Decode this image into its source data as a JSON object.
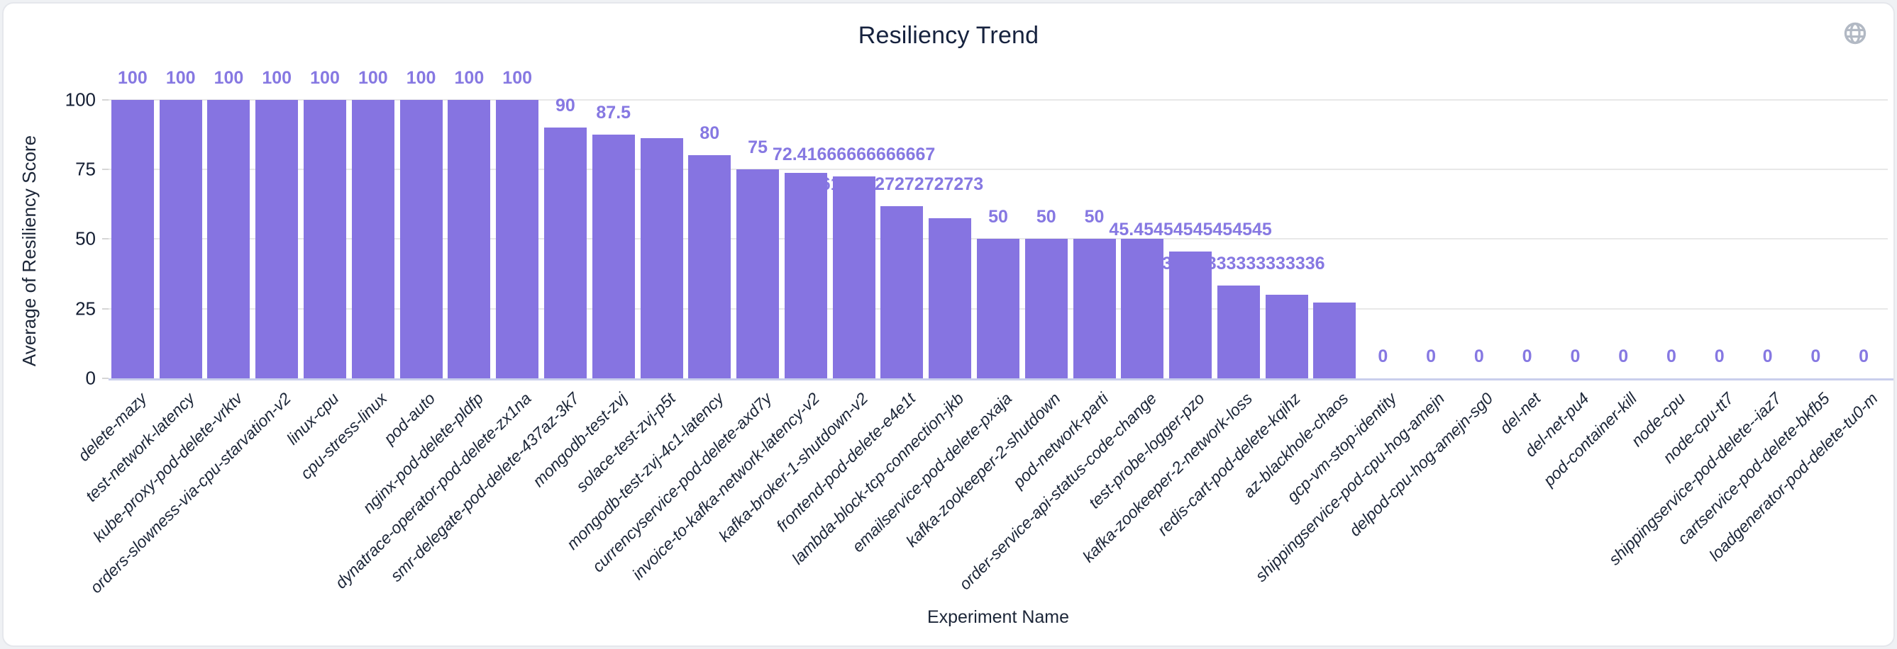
{
  "header": {
    "title": "Resiliency Trend",
    "globe_icon": "globe-icon"
  },
  "chart_data": {
    "type": "bar",
    "title": "Resiliency Trend",
    "xlabel": "Experiment Name",
    "ylabel": "Average of Resiliency Score",
    "ylim": [
      0,
      100
    ],
    "y_ticks": [
      0,
      25,
      50,
      75,
      100
    ],
    "grid": true,
    "legend": "none",
    "bar_color": "#8674e1",
    "value_label_color": "#8678e2",
    "categories": [
      "delete-mazy",
      "test-network-latency",
      "kube-proxy-pod-delete-vrktv",
      "orders-slowness-via-cpu-starvation-v2",
      "linux-cpu",
      "cpu-stress-linux",
      "pod-auto",
      "nginx-pod-delete-pldfp",
      "dynatrace-operator-pod-delete-zx1na",
      "smr-delegate-pod-delete-437az-3k7",
      "mongodb-test-zvj",
      "solace-test-zvj-p5t",
      "mongodb-test-zvj-4c1-latency",
      "currencyservice-pod-delete-axd7y",
      "invoice-to-kafka-network-latency-v2",
      "kafka-broker-1-shutdown-v2",
      "frontend-pod-delete-e4e1t",
      "lambda-block-tcp-connection-jkb",
      "emailservice-pod-delete-pxaja",
      "kafka-zookeeper-2-shutdown",
      "pod-network-parti",
      "order-service-api-status-code-change",
      "test-probe-logger-pzo",
      "kafka-zookeeper-2-network-loss",
      "redis-cart-pod-delete-kqihz",
      "az-blackhole-chaos",
      "gcp-vm-stop-identity",
      "shippingservice-pod-cpu-hog-amejn",
      "delpod-cpu-hog-amejn-sg0",
      "del-net",
      "del-net-pu4",
      "pod-container-kill",
      "node-cpu",
      "node-cpu-tt7",
      "shippingservice-pod-delete--iaz7",
      "cartservice-pod-delete-bkfb5",
      "loadgenerator-pod-delete-tu0-m"
    ],
    "values": [
      100,
      100,
      100,
      100,
      100,
      100,
      100,
      100,
      100,
      90,
      87.5,
      86.25,
      80,
      75,
      73.64,
      72.41666666666667,
      61.72727272727273,
      57.5,
      50,
      50,
      50,
      50,
      45.45454545454545,
      33.333333333333336,
      30,
      27.27,
      0,
      0,
      0,
      0,
      0,
      0,
      0,
      0,
      0,
      0,
      0
    ],
    "bar_labels": [
      "100",
      "100",
      "100",
      "100",
      "100",
      "100",
      "100",
      "100",
      "100",
      "90",
      "87.5",
      null,
      "80",
      "75",
      null,
      "72.41666666666667",
      "61.72727272727273",
      null,
      "50",
      "50",
      "50",
      null,
      "45.45454545454545",
      "33.333333333333336",
      null,
      null,
      "0",
      "0",
      "0",
      "0",
      "0",
      "0",
      "0",
      "0",
      "0",
      "0",
      "0"
    ]
  },
  "colors": {
    "bar": "#8674e1",
    "value_label": "#8678e2",
    "title_text": "#16223e",
    "axis_text": "#1c2638",
    "gridline": "#e8e8e8",
    "axis_line": "#c9cfec",
    "globe_icon": "#b2b9c4",
    "card_border": "#e5e7ec"
  }
}
